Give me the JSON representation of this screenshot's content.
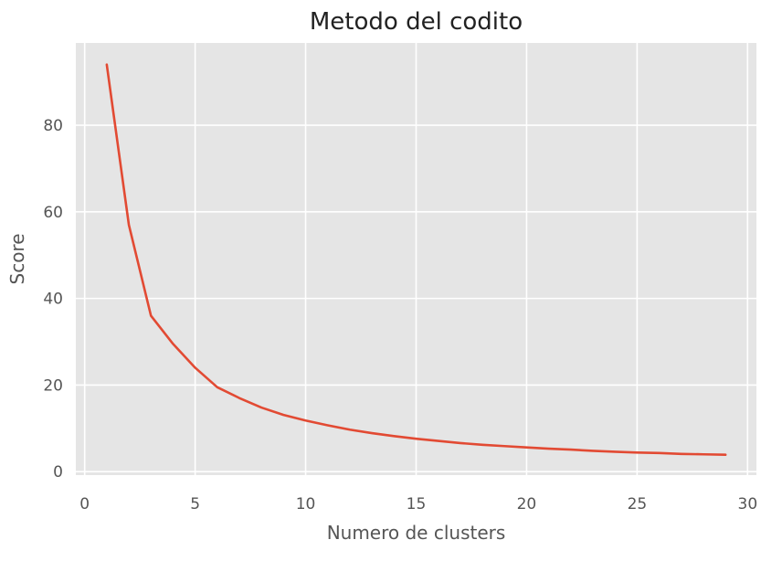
{
  "chart_data": {
    "type": "line",
    "title": "Metodo del codito",
    "xlabel": "Numero de clusters",
    "ylabel": "Score",
    "xlim": [
      -0.4,
      30.4
    ],
    "ylim": [
      -0.8,
      99
    ],
    "xticks": [
      0,
      5,
      10,
      15,
      20,
      25,
      30
    ],
    "yticks": [
      0,
      20,
      40,
      60,
      80
    ],
    "grid": true,
    "legend": "none",
    "background_color": "#e5e5e5",
    "grid_color": "#ffffff",
    "line_color": "#e24a33",
    "series": [
      {
        "x": [
          1,
          2,
          3,
          4,
          5,
          6,
          7,
          8,
          9,
          10,
          11,
          12,
          13,
          14,
          15,
          16,
          17,
          18,
          19,
          20,
          21,
          22,
          23,
          24,
          25,
          26,
          27,
          28,
          29
        ],
        "values": [
          94,
          57,
          36,
          29.5,
          24,
          19.5,
          17,
          14.8,
          13.1,
          11.8,
          10.7,
          9.7,
          8.9,
          8.2,
          7.6,
          7.1,
          6.6,
          6.2,
          5.9,
          5.6,
          5.3,
          5.1,
          4.8,
          4.6,
          4.4,
          4.3,
          4.1,
          4.0,
          3.9
        ]
      }
    ]
  }
}
